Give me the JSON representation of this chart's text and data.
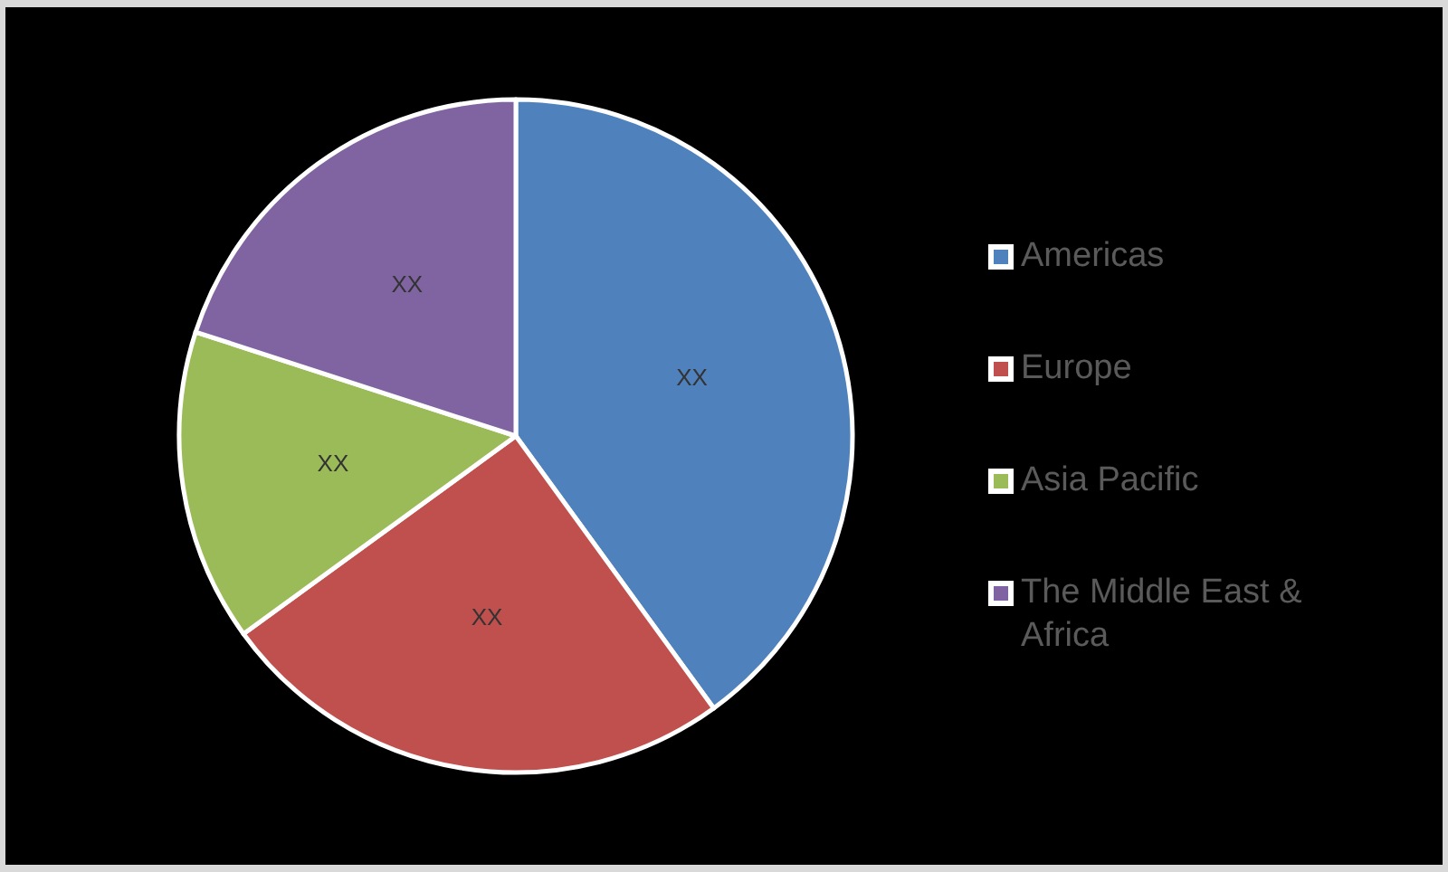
{
  "chart_data": {
    "type": "pie",
    "categories": [
      "Americas",
      "Europe",
      "Asia Pacific",
      "The Middle East & Africa"
    ],
    "values": [
      40,
      25,
      15,
      20
    ],
    "colors": [
      "#4f81bd",
      "#c0504d",
      "#9bbb59",
      "#8064a2"
    ],
    "value_labels": [
      "XX",
      "XX",
      "XX",
      "XX"
    ],
    "legend": "right"
  }
}
